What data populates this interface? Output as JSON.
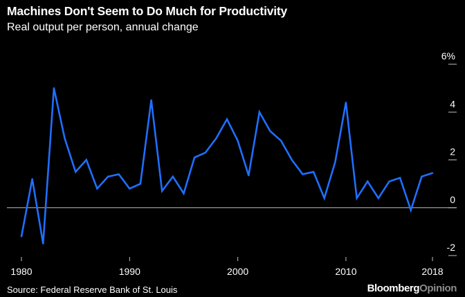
{
  "title": "Machines Don't Seem to Do Much for Productivity",
  "subtitle": "Real output per person, annual change",
  "source": "Source: Federal Reserve Bank of St. Louis",
  "brand": {
    "part1": "Bloomberg",
    "part2": "Opinion"
  },
  "colors": {
    "background": "#000000",
    "line": "#1f6fff",
    "text": "#ffffff",
    "grid": "#bfbfbf"
  },
  "chart_data": {
    "type": "line",
    "title": "Machines Don't Seem to Do Much for Productivity",
    "subtitle": "Real output per person, annual change",
    "x": [
      1980,
      1981,
      1982,
      1983,
      1984,
      1985,
      1986,
      1987,
      1988,
      1989,
      1990,
      1991,
      1992,
      1993,
      1994,
      1995,
      1996,
      1997,
      1998,
      1999,
      2000,
      2001,
      2002,
      2003,
      2004,
      2005,
      2006,
      2007,
      2008,
      2009,
      2010,
      2011,
      2012,
      2013,
      2014,
      2015,
      2016,
      2017,
      2018
    ],
    "series": [
      {
        "values": [
          -1.2,
          1.2,
          -1.5,
          5.0,
          2.9,
          1.5,
          2.0,
          0.8,
          1.3,
          1.4,
          0.8,
          1.0,
          4.5,
          0.7,
          1.3,
          0.6,
          2.1,
          2.3,
          2.9,
          3.7,
          2.8,
          1.35,
          4.0,
          3.2,
          2.8,
          2.0,
          1.4,
          1.5,
          0.4,
          1.9,
          4.4,
          0.4,
          1.1,
          0.4,
          1.1,
          1.25,
          -0.1,
          1.3,
          1.45
        ]
      }
    ],
    "xticks": [
      "1980",
      "1990",
      "2000",
      "2010",
      "2018"
    ],
    "xtick_values": [
      1980,
      1990,
      2000,
      2010,
      2018
    ],
    "yticks": [
      "6%",
      "4",
      "2",
      "0",
      "-2"
    ],
    "ytick_values": [
      6,
      4,
      2,
      0,
      -2
    ],
    "xlim": [
      1980,
      2018
    ],
    "ylim": [
      -2,
      6
    ],
    "grid": false
  }
}
